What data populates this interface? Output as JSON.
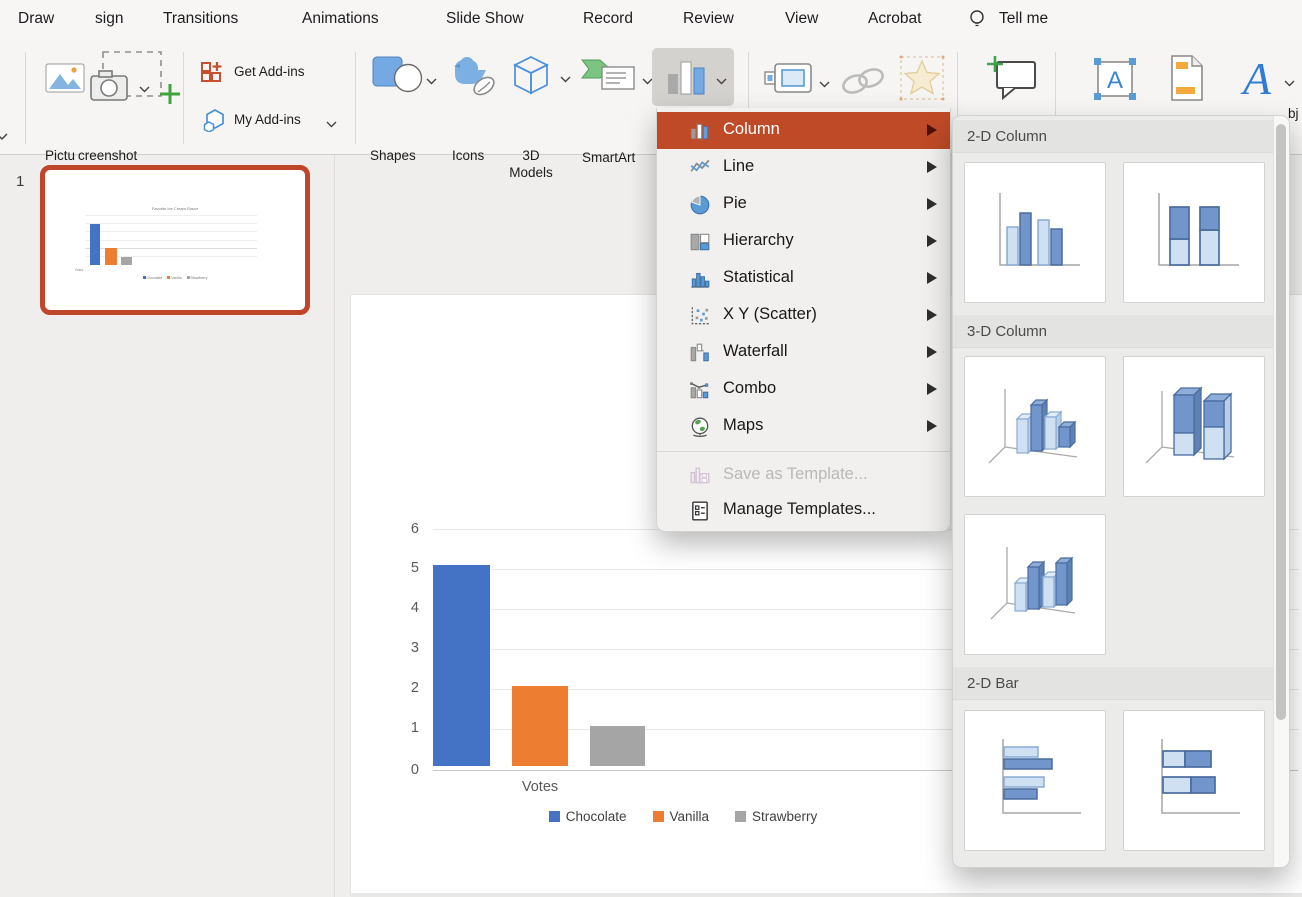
{
  "menu_bar": {
    "items": [
      "Draw",
      "sign",
      "Transitions",
      "Animations",
      "Slide Show",
      "Record",
      "Review",
      "View",
      "Acrobat",
      "Tell me"
    ]
  },
  "ribbon": {
    "picture_label": "Pictu",
    "screenshot_label": "creenshot",
    "get_addins_label": "Get Add-ins",
    "my_addins_label": "My Add-ins",
    "shapes_label": "Shapes",
    "icons_label": "Icons",
    "models_3d_label": "3D Models",
    "smartart_label": "SmartArt",
    "edge_fragment": "bj"
  },
  "sidebar": {
    "slide_number": "1"
  },
  "chart_menu": {
    "items": [
      {
        "label": "Column",
        "icon": "column-chart-icon",
        "selected": true
      },
      {
        "label": "Line",
        "icon": "line-chart-icon",
        "selected": false
      },
      {
        "label": "Pie",
        "icon": "pie-chart-icon",
        "selected": false
      },
      {
        "label": "Hierarchy",
        "icon": "hierarchy-chart-icon",
        "selected": false
      },
      {
        "label": "Statistical",
        "icon": "statistical-chart-icon",
        "selected": false
      },
      {
        "label": "X Y (Scatter)",
        "icon": "scatter-chart-icon",
        "selected": false
      },
      {
        "label": "Waterfall",
        "icon": "waterfall-chart-icon",
        "selected": false
      },
      {
        "label": "Combo",
        "icon": "combo-chart-icon",
        "selected": false
      },
      {
        "label": "Maps",
        "icon": "maps-chart-icon",
        "selected": false
      }
    ],
    "footer": [
      {
        "label": "Save as Template...",
        "disabled": true
      },
      {
        "label": "Manage Templates...",
        "disabled": false
      }
    ]
  },
  "submenu": {
    "sections": [
      {
        "title": "2-D Column",
        "tiles": [
          "clustered-column",
          "stacked-column"
        ]
      },
      {
        "title": "3-D Column",
        "tiles": [
          "3d-clustered-column",
          "3d-stacked-column",
          "3d-100-stacked-column"
        ]
      },
      {
        "title": "2-D Bar",
        "tiles": [
          "clustered-bar",
          "stacked-bar"
        ]
      }
    ]
  },
  "chart_data": {
    "type": "bar",
    "title": "Favorite Ice Cream Flavor",
    "categories": [
      "Votes"
    ],
    "series": [
      {
        "name": "Chocolate",
        "values": [
          5
        ],
        "color": "#4472c4"
      },
      {
        "name": "Vanilla",
        "values": [
          2
        ],
        "color": "#ed7d31"
      },
      {
        "name": "Strawberry",
        "values": [
          1
        ],
        "color": "#a5a5a5"
      }
    ],
    "xlabel": "Votes",
    "ylabel": "",
    "yticks": [
      0,
      1,
      2,
      3,
      4,
      5,
      6
    ],
    "ylim": [
      0,
      6
    ],
    "grid": true,
    "legend_position": "bottom"
  },
  "icons": {
    "textbox_glyph": "A",
    "wordart_glyph": "A"
  }
}
